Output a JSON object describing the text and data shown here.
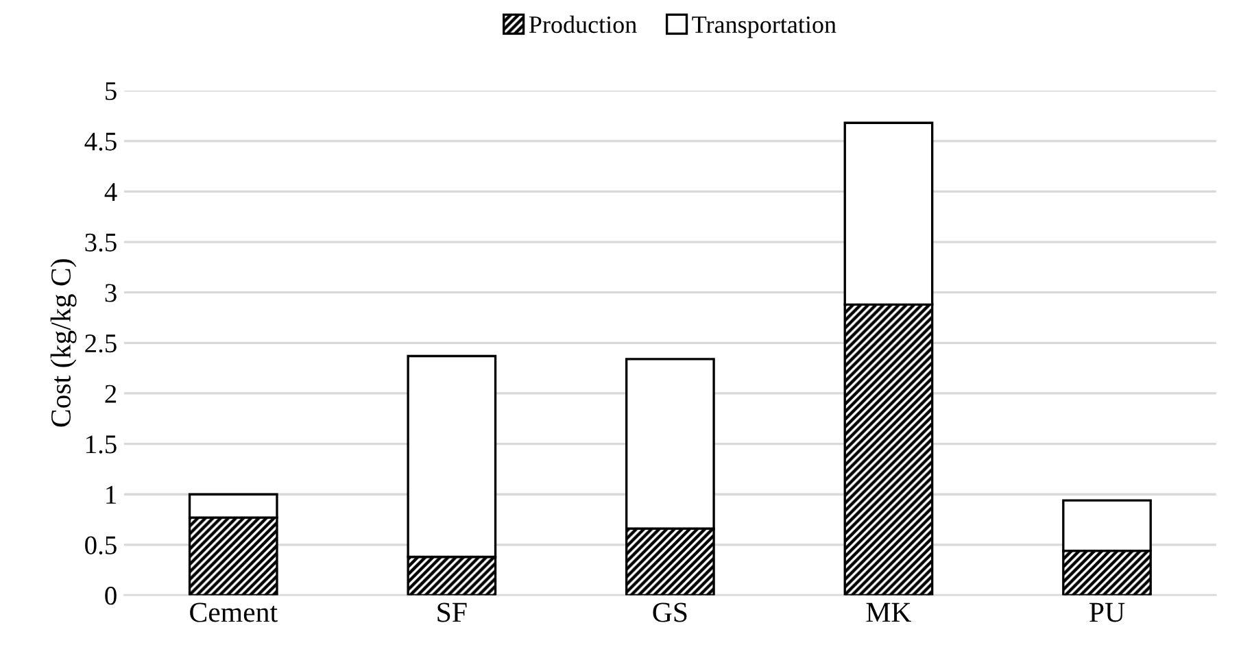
{
  "chart_data": {
    "type": "bar",
    "stacked": true,
    "ylabel": "Cost (kg/kg C)",
    "categories": [
      "Cement",
      "SF",
      "GS",
      "MK",
      "PU"
    ],
    "series": [
      {
        "name": "Production",
        "color": "#000000",
        "values": [
          0.77,
          0.38,
          0.66,
          2.88,
          0.44
        ]
      },
      {
        "name": "Transportation",
        "color": "#000000",
        "values": [
          0.23,
          1.99,
          1.68,
          1.8,
          0.5
        ]
      }
    ],
    "ylim": [
      0,
      5
    ],
    "yticks": [
      0,
      0.5,
      1,
      1.5,
      2,
      2.5,
      3,
      3.5,
      4,
      4.5,
      5
    ],
    "grid": "y",
    "legend": "top"
  }
}
